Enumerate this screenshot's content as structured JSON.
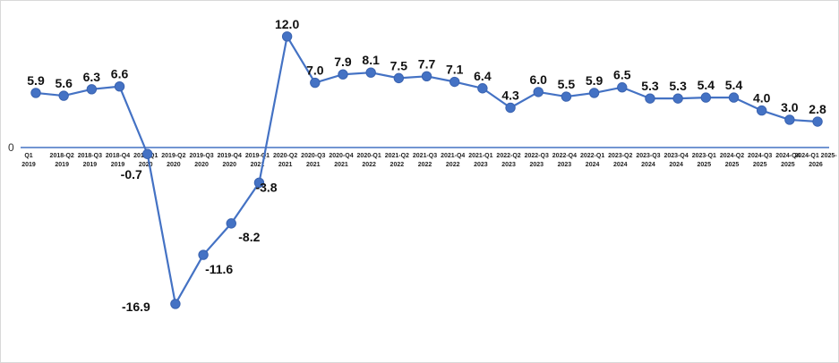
{
  "chart_data": {
    "type": "line",
    "title": "",
    "xlabel": "",
    "ylabel": "",
    "categories": [
      "Q1 2018-Q2 2019",
      "Q2 2018-Q3 2019",
      "Q3 2018-Q4 2019",
      "Q4 2018-Q1 2019",
      "Q1 2019-Q2 2020",
      "Q2 2019-Q3 2020",
      "Q3 2019-Q4 2020",
      "Q4 2019-Q1 2020",
      "Q1 2020-Q2 2021",
      "Q2 2020-Q3 2021",
      "Q3 2020-Q4 2021",
      "Q4 2020-Q1 2021",
      "Q1 2021-Q2 2022",
      "Q2 2021-Q3 2022",
      "Q3 2021-Q4 2022",
      "Q4 2021-Q1 2022",
      "Q1 2022-Q2 2023",
      "Q2 2022-Q3 2023",
      "Q3 2022-Q4 2023",
      "Q4 2022-Q1 2023",
      "Q1 2023-Q2 2024",
      "Q2 2023-Q3 2024",
      "Q3 2023-Q4 2024",
      "Q4 2023-Q1 2024",
      "Q1 2024-Q2 2025",
      "Q2 2024-Q3 2025",
      "Q3 2024-Q4 2025",
      "Q4 2024-Q1 2025",
      "Q1 2025-2026"
    ],
    "tick_lines": [
      [
        "Q1",
        "2019"
      ],
      [
        "2018-Q2",
        "2019"
      ],
      [
        "2018-Q3",
        "2019"
      ],
      [
        "2018-Q4",
        "2019"
      ],
      [
        "2018-Q1",
        "2020"
      ],
      [
        "2019-Q2",
        "2020"
      ],
      [
        "2019-Q3",
        "2020"
      ],
      [
        "2019-Q4",
        "2020"
      ],
      [
        "2019-Q1",
        "2021"
      ],
      [
        "2020-Q2",
        "2021"
      ],
      [
        "2020-Q3",
        "2021"
      ],
      [
        "2020-Q4",
        "2021"
      ],
      [
        "2020-Q1",
        "2022"
      ],
      [
        "2021-Q2",
        "2022"
      ],
      [
        "2021-Q3",
        "2022"
      ],
      [
        "2021-Q4",
        "2022"
      ],
      [
        "2021-Q1",
        "2023"
      ],
      [
        "2022-Q2",
        "2023"
      ],
      [
        "2022-Q3",
        "2023"
      ],
      [
        "2022-Q4",
        "2023"
      ],
      [
        "2022-Q1",
        "2024"
      ],
      [
        "2023-Q2",
        "2024"
      ],
      [
        "2023-Q3",
        "2024"
      ],
      [
        "2023-Q4",
        "2024"
      ],
      [
        "2023-Q1",
        "2025"
      ],
      [
        "2024-Q2",
        "2025"
      ],
      [
        "2024-Q3",
        "2025"
      ],
      [
        "2024-Q4",
        "2025"
      ],
      [
        "2024-Q1 2025-",
        "2026"
      ]
    ],
    "series": [
      {
        "values": [
          5.9,
          5.6,
          6.3,
          6.6,
          -0.7,
          -16.9,
          -11.6,
          -8.2,
          -3.8,
          12.0,
          7.0,
          7.9,
          8.1,
          7.5,
          7.7,
          7.1,
          6.4,
          4.3,
          6.0,
          5.5,
          5.9,
          6.5,
          5.3,
          5.3,
          5.4,
          5.4,
          4.0,
          3.0,
          2.8
        ],
        "labels": [
          "5.9",
          "5.6",
          "6.3",
          "6.6",
          "-0.7",
          "-16.9",
          "-11.6",
          "-8.2",
          "-3.8",
          "12.0",
          "7.0",
          "7.9",
          "8.1",
          "7.5",
          "7.7",
          "7.1",
          "6.4",
          "4.3",
          "6.0",
          "5.5",
          "5.9",
          "6.5",
          "5.3",
          "5.3",
          "5.4",
          "5.4",
          "4.0",
          "3.0",
          "2.8"
        ]
      }
    ],
    "y_tick_label": "0",
    "ylim": [
      -18.5,
      13.5
    ],
    "grid": false,
    "legend": "none",
    "colors": {
      "line": "#4472C4",
      "marker": "#4472C4",
      "axis": "#4472C4"
    }
  }
}
